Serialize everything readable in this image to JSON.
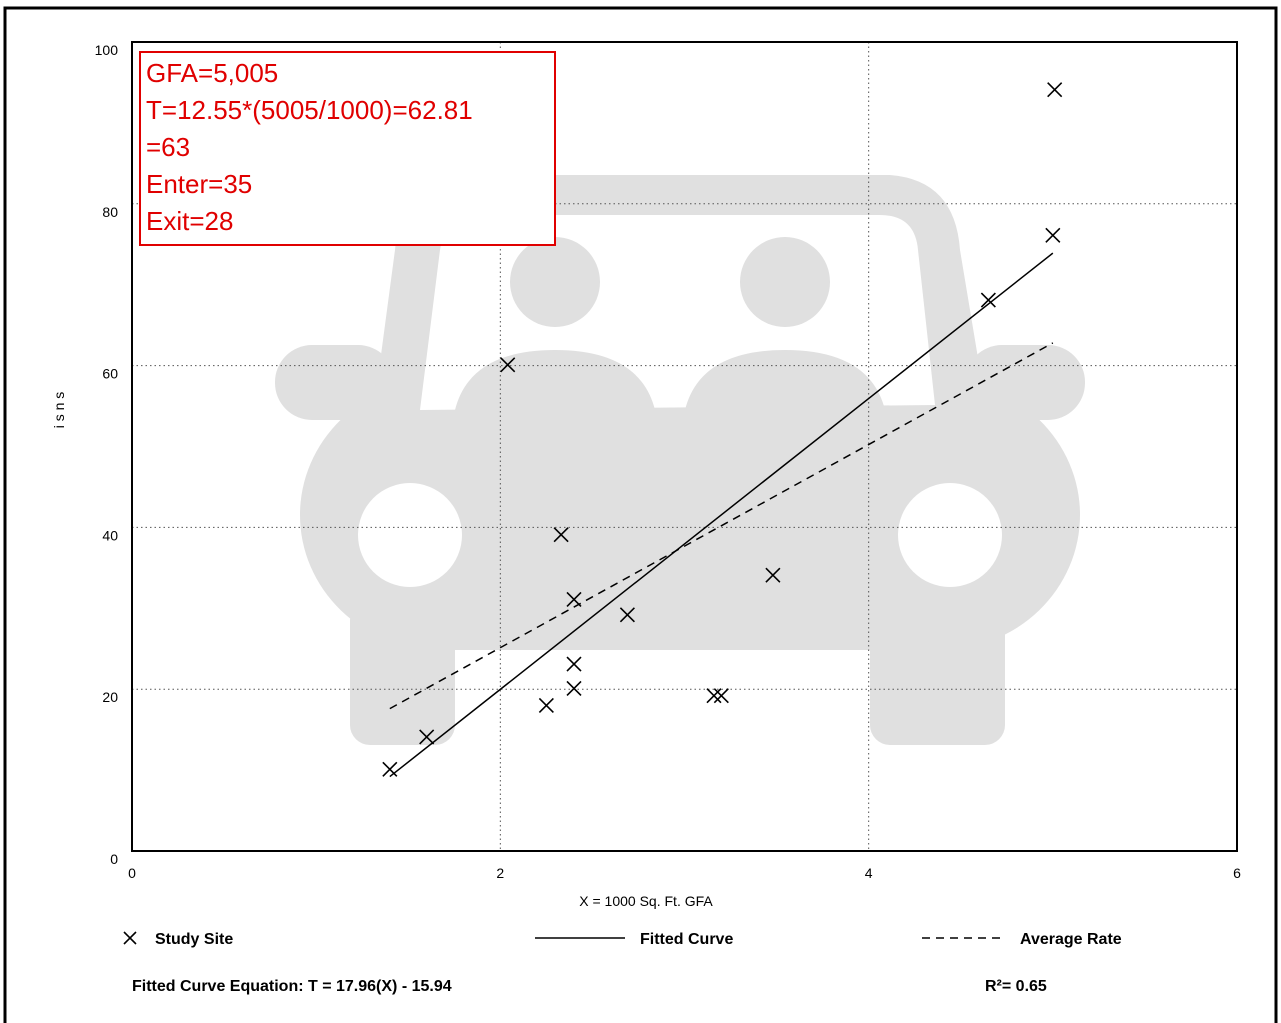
{
  "chart_data": {
    "type": "scatter",
    "x_label": "X = 1000 Sq. Ft. GFA",
    "y_label": "i s n s",
    "xlim": [
      0,
      6
    ],
    "ylim": [
      0,
      100
    ],
    "xticks": [
      0,
      2,
      4,
      6
    ],
    "yticks": [
      0,
      20,
      40,
      60,
      80,
      100
    ],
    "grid": true,
    "series": [
      {
        "name": "Study Site",
        "color": "#000000",
        "marker": "x",
        "x": [
          1.4,
          1.6,
          2.25,
          2.04,
          2.33,
          2.4,
          2.4,
          2.4,
          2.69,
          3.16,
          3.2,
          3.48,
          4.65,
          5.0,
          5.01
        ],
        "values": [
          10.1,
          14.1,
          18.0,
          60.1,
          39.1,
          31.1,
          23.1,
          20.1,
          29.2,
          19.2,
          19.2,
          34.1,
          68.1,
          76.1,
          94.1
        ]
      },
      {
        "name": "Fitted Curve",
        "color": "#000000",
        "line": "solid",
        "x": [
          1.4,
          5.0
        ],
        "values": [
          9.2,
          73.9
        ]
      },
      {
        "name": "Average Rate",
        "color": "#000000",
        "line": "dashed",
        "x": [
          1.4,
          5.0
        ],
        "values": [
          17.6,
          62.8
        ]
      }
    ],
    "annotation": {
      "color": "#e00000",
      "lines": [
        "GFA=5,005",
        "T=12.55*(5005/1000)=62.81",
        "=63",
        "Enter=35",
        "Exit=28"
      ]
    },
    "equation": "Fitted Curve Equation: T = 17.96(X) - 15.94",
    "r_squared": "R²= 0.65"
  }
}
